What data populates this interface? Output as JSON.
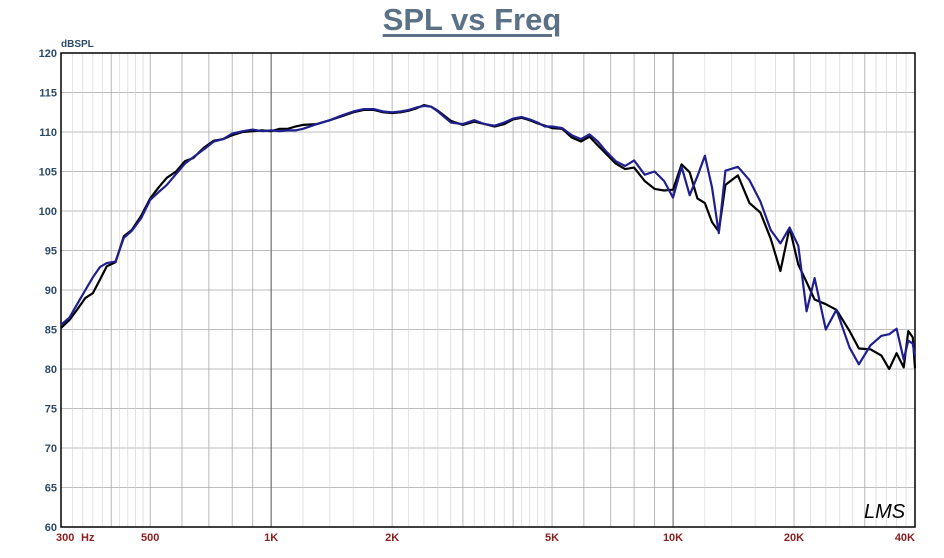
{
  "chart_data": {
    "type": "line",
    "title": "SPL vs Freq",
    "ylabel": "dBSPL",
    "xlabel": "",
    "x_scale": "log",
    "xlim": [
      300,
      40000
    ],
    "ylim": [
      60,
      120
    ],
    "grid": true,
    "legend": "none",
    "watermark": "LMS",
    "y_ticks": [
      {
        "value": 60,
        "label": "60"
      },
      {
        "value": 65,
        "label": "65"
      },
      {
        "value": 70,
        "label": "70"
      },
      {
        "value": 75,
        "label": "75"
      },
      {
        "value": 80,
        "label": "80"
      },
      {
        "value": 85,
        "label": "85"
      },
      {
        "value": 90,
        "label": "90"
      },
      {
        "value": 95,
        "label": "95"
      },
      {
        "value": 100,
        "label": "100"
      },
      {
        "value": 105,
        "label": "105"
      },
      {
        "value": 110,
        "label": "110"
      },
      {
        "value": 115,
        "label": "115"
      },
      {
        "value": 120,
        "label": "120"
      }
    ],
    "x_ticks": [
      {
        "value": 300,
        "label": "300",
        "anchor": "start"
      },
      {
        "value": 500,
        "label": "500",
        "anchor": "middle"
      },
      {
        "value": 1000,
        "label": "1K",
        "anchor": "middle"
      },
      {
        "value": 2000,
        "label": "2K",
        "anchor": "middle"
      },
      {
        "value": 5000,
        "label": "5K",
        "anchor": "middle"
      },
      {
        "value": 10000,
        "label": "10K",
        "anchor": "middle"
      },
      {
        "value": 20000,
        "label": "20K",
        "anchor": "middle"
      },
      {
        "value": 40000,
        "label": "40K",
        "anchor": "end"
      }
    ],
    "x_unit_label": "Hz",
    "colors": {
      "series_black": "#000000",
      "series_blue": "#1f1f8f",
      "grid": "#a8a8a8",
      "tick_y": "#2c4a66",
      "tick_x": "#8b1e1e",
      "title": "#5b7186"
    },
    "series": [
      {
        "color": "#000000",
        "points": [
          [
            300,
            85.2
          ],
          [
            315,
            86.2
          ],
          [
            330,
            87.6
          ],
          [
            345,
            89.0
          ],
          [
            360,
            89.6
          ],
          [
            375,
            91.3
          ],
          [
            390,
            93.0
          ],
          [
            410,
            93.5
          ],
          [
            430,
            96.8
          ],
          [
            450,
            97.6
          ],
          [
            475,
            99.4
          ],
          [
            500,
            101.6
          ],
          [
            525,
            103.0
          ],
          [
            550,
            104.2
          ],
          [
            580,
            105.0
          ],
          [
            610,
            106.3
          ],
          [
            640,
            106.7
          ],
          [
            680,
            108.0
          ],
          [
            720,
            108.9
          ],
          [
            760,
            109.1
          ],
          [
            800,
            109.6
          ],
          [
            850,
            110.0
          ],
          [
            900,
            110.1
          ],
          [
            950,
            110.2
          ],
          [
            1000,
            110.1
          ],
          [
            1050,
            110.4
          ],
          [
            1100,
            110.4
          ],
          [
            1150,
            110.7
          ],
          [
            1200,
            110.9
          ],
          [
            1300,
            111.0
          ],
          [
            1400,
            111.5
          ],
          [
            1500,
            112.0
          ],
          [
            1600,
            112.5
          ],
          [
            1700,
            112.8
          ],
          [
            1800,
            112.8
          ],
          [
            1900,
            112.5
          ],
          [
            2000,
            112.4
          ],
          [
            2100,
            112.5
          ],
          [
            2200,
            112.7
          ],
          [
            2300,
            113.0
          ],
          [
            2400,
            113.4
          ],
          [
            2500,
            113.2
          ],
          [
            2600,
            112.7
          ],
          [
            2800,
            111.4
          ],
          [
            3000,
            110.9
          ],
          [
            3200,
            111.3
          ],
          [
            3400,
            111.0
          ],
          [
            3600,
            110.7
          ],
          [
            3800,
            111.0
          ],
          [
            4000,
            111.6
          ],
          [
            4200,
            111.8
          ],
          [
            4400,
            111.5
          ],
          [
            4600,
            111.1
          ],
          [
            4800,
            110.8
          ],
          [
            5000,
            110.5
          ],
          [
            5300,
            110.4
          ],
          [
            5600,
            109.3
          ],
          [
            5900,
            108.8
          ],
          [
            6200,
            109.4
          ],
          [
            6500,
            108.3
          ],
          [
            6800,
            107.3
          ],
          [
            7200,
            106.0
          ],
          [
            7600,
            105.3
          ],
          [
            8000,
            105.5
          ],
          [
            8500,
            103.8
          ],
          [
            9000,
            102.8
          ],
          [
            9500,
            102.6
          ],
          [
            10000,
            102.7
          ],
          [
            10500,
            105.9
          ],
          [
            11000,
            104.9
          ],
          [
            11500,
            101.6
          ],
          [
            12000,
            101.0
          ],
          [
            12500,
            98.6
          ],
          [
            13000,
            97.4
          ],
          [
            13500,
            103.3
          ],
          [
            14500,
            104.5
          ],
          [
            15500,
            101.0
          ],
          [
            16500,
            99.8
          ],
          [
            17500,
            96.5
          ],
          [
            18500,
            92.4
          ],
          [
            19500,
            97.9
          ],
          [
            20500,
            93.2
          ],
          [
            21500,
            91.0
          ],
          [
            22500,
            88.8
          ],
          [
            24000,
            88.2
          ],
          [
            25500,
            87.5
          ],
          [
            27500,
            84.8
          ],
          [
            29000,
            82.6
          ],
          [
            31000,
            82.5
          ],
          [
            33000,
            81.7
          ],
          [
            34500,
            80.0
          ],
          [
            36000,
            82.0
          ],
          [
            37500,
            80.2
          ],
          [
            38500,
            84.8
          ],
          [
            39500,
            84.0
          ],
          [
            40000,
            80.1
          ]
        ]
      },
      {
        "color": "#1f1f8f",
        "points": [
          [
            300,
            85.6
          ],
          [
            315,
            86.5
          ],
          [
            330,
            88.3
          ],
          [
            345,
            90.0
          ],
          [
            360,
            91.6
          ],
          [
            375,
            92.9
          ],
          [
            390,
            93.4
          ],
          [
            410,
            93.6
          ],
          [
            430,
            96.6
          ],
          [
            450,
            97.5
          ],
          [
            475,
            99.1
          ],
          [
            500,
            101.4
          ],
          [
            525,
            102.4
          ],
          [
            550,
            103.3
          ],
          [
            580,
            104.7
          ],
          [
            610,
            106.0
          ],
          [
            640,
            106.8
          ],
          [
            680,
            107.8
          ],
          [
            720,
            108.8
          ],
          [
            760,
            109.1
          ],
          [
            800,
            109.8
          ],
          [
            850,
            110.1
          ],
          [
            900,
            110.3
          ],
          [
            950,
            110.1
          ],
          [
            1000,
            110.2
          ],
          [
            1050,
            110.1
          ],
          [
            1100,
            110.2
          ],
          [
            1150,
            110.2
          ],
          [
            1200,
            110.4
          ],
          [
            1300,
            111.0
          ],
          [
            1400,
            111.5
          ],
          [
            1500,
            112.1
          ],
          [
            1600,
            112.6
          ],
          [
            1700,
            112.9
          ],
          [
            1800,
            112.9
          ],
          [
            1900,
            112.6
          ],
          [
            2000,
            112.5
          ],
          [
            2100,
            112.6
          ],
          [
            2200,
            112.8
          ],
          [
            2300,
            113.1
          ],
          [
            2400,
            113.3
          ],
          [
            2500,
            113.2
          ],
          [
            2600,
            112.6
          ],
          [
            2800,
            111.2
          ],
          [
            3000,
            111.0
          ],
          [
            3200,
            111.5
          ],
          [
            3400,
            111.0
          ],
          [
            3600,
            110.8
          ],
          [
            3800,
            111.2
          ],
          [
            4000,
            111.7
          ],
          [
            4200,
            111.9
          ],
          [
            4400,
            111.6
          ],
          [
            4600,
            111.2
          ],
          [
            4800,
            110.7
          ],
          [
            5000,
            110.7
          ],
          [
            5300,
            110.5
          ],
          [
            5600,
            109.6
          ],
          [
            5900,
            109.1
          ],
          [
            6200,
            109.7
          ],
          [
            6500,
            108.8
          ],
          [
            6800,
            107.6
          ],
          [
            7200,
            106.3
          ],
          [
            7600,
            105.7
          ],
          [
            8000,
            106.4
          ],
          [
            8500,
            104.6
          ],
          [
            9000,
            105.0
          ],
          [
            9500,
            103.8
          ],
          [
            10000,
            101.7
          ],
          [
            10500,
            105.6
          ],
          [
            11000,
            102.0
          ],
          [
            11500,
            104.4
          ],
          [
            12000,
            107.0
          ],
          [
            12500,
            103.0
          ],
          [
            13000,
            97.2
          ],
          [
            13500,
            105.1
          ],
          [
            14500,
            105.6
          ],
          [
            15500,
            103.9
          ],
          [
            16500,
            101.2
          ],
          [
            17500,
            97.6
          ],
          [
            18500,
            95.9
          ],
          [
            19500,
            97.9
          ],
          [
            20500,
            95.6
          ],
          [
            21500,
            87.3
          ],
          [
            22500,
            91.5
          ],
          [
            24000,
            85.0
          ],
          [
            25500,
            87.5
          ],
          [
            27500,
            82.7
          ],
          [
            29000,
            80.6
          ],
          [
            31000,
            83.0
          ],
          [
            33000,
            84.2
          ],
          [
            34500,
            84.4
          ],
          [
            36000,
            85.1
          ],
          [
            37500,
            81.2
          ],
          [
            38500,
            83.6
          ],
          [
            39500,
            83.2
          ],
          [
            40000,
            81.6
          ]
        ]
      }
    ]
  }
}
